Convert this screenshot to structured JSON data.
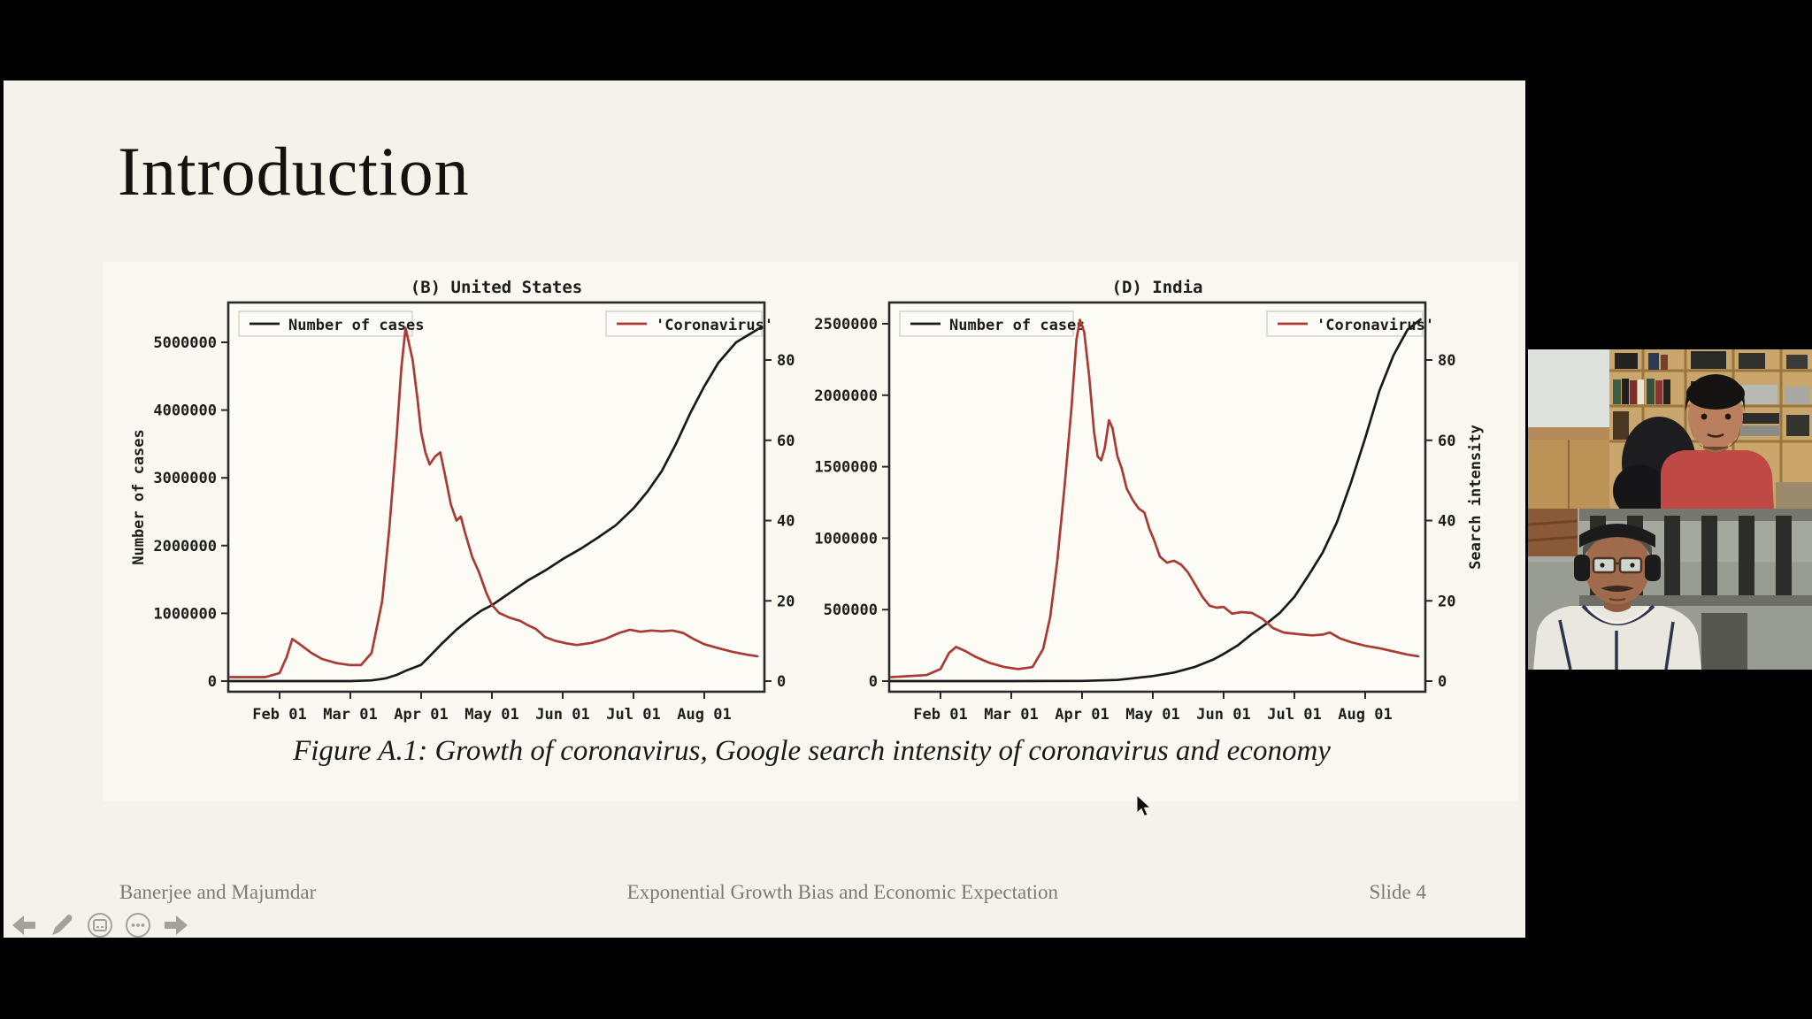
{
  "slide": {
    "title": "Introduction",
    "caption": "Figure A.1: Growth of coronavirus, Google search intensity of coronavirus and economy",
    "footer": {
      "author": "Banerjee and Majumdar",
      "deck_title": "Exponential Growth Bias and Economic Expectation",
      "slide_number": "Slide 4"
    },
    "background_color": "#f5f2ea",
    "nav_icons": [
      "previous-slide",
      "pen-tool",
      "slide-overview",
      "more-options",
      "next-slide"
    ]
  },
  "chart_data": [
    {
      "type": "line",
      "title": "(B) United States",
      "x_tick_labels": [
        "Feb 01",
        "Mar 01",
        "Apr 01",
        "May 01",
        "Jun 01",
        "Jul 01",
        "Aug 01"
      ],
      "x_note": "x in months, 1 = Feb 01 ... 7 = Aug 01, plotted range about Jan 10 to Aug 25",
      "y_left": {
        "label": "Number of cases",
        "ticks": [
          0,
          1000000,
          2000000,
          3000000,
          4000000,
          5000000
        ]
      },
      "y_right": {
        "label": "",
        "ticks": [
          0,
          20,
          40,
          60,
          80
        ]
      },
      "legend": [
        {
          "label": "Number of cases",
          "color": "#1c1a18"
        },
        {
          "label": "'Coronavirus'",
          "color": "#a93a34"
        }
      ],
      "series": [
        {
          "name": "Number of cases",
          "axis": "left",
          "color": "#1c1a18",
          "points": [
            [
              0.3,
              0
            ],
            [
              1.0,
              0
            ],
            [
              2.0,
              100
            ],
            [
              2.3,
              10000
            ],
            [
              2.5,
              40000
            ],
            [
              2.65,
              90000
            ],
            [
              2.8,
              160000
            ],
            [
              3.0,
              240000
            ],
            [
              3.15,
              400000
            ],
            [
              3.3,
              560000
            ],
            [
              3.5,
              760000
            ],
            [
              3.7,
              930000
            ],
            [
              3.85,
              1040000
            ],
            [
              4.0,
              1120000
            ],
            [
              4.25,
              1300000
            ],
            [
              4.5,
              1480000
            ],
            [
              4.75,
              1630000
            ],
            [
              5.0,
              1800000
            ],
            [
              5.25,
              1950000
            ],
            [
              5.5,
              2120000
            ],
            [
              5.75,
              2300000
            ],
            [
              6.0,
              2550000
            ],
            [
              6.2,
              2800000
            ],
            [
              6.4,
              3100000
            ],
            [
              6.6,
              3500000
            ],
            [
              6.8,
              3950000
            ],
            [
              7.0,
              4350000
            ],
            [
              7.2,
              4700000
            ],
            [
              7.45,
              5000000
            ],
            [
              7.8,
              5220000
            ]
          ]
        },
        {
          "name": "'Coronavirus'",
          "axis": "right",
          "color": "#a93a34",
          "points": [
            [
              0.3,
              1
            ],
            [
              0.8,
              1
            ],
            [
              1.0,
              2
            ],
            [
              1.1,
              6
            ],
            [
              1.18,
              10.5
            ],
            [
              1.3,
              9
            ],
            [
              1.45,
              7
            ],
            [
              1.6,
              5.5
            ],
            [
              1.8,
              4.5
            ],
            [
              2.0,
              4
            ],
            [
              2.15,
              4
            ],
            [
              2.3,
              7
            ],
            [
              2.45,
              20
            ],
            [
              2.55,
              38
            ],
            [
              2.65,
              60
            ],
            [
              2.72,
              78
            ],
            [
              2.78,
              88
            ],
            [
              2.83,
              84
            ],
            [
              2.88,
              80
            ],
            [
              2.95,
              70
            ],
            [
              3.0,
              62
            ],
            [
              3.06,
              57
            ],
            [
              3.12,
              54
            ],
            [
              3.2,
              56
            ],
            [
              3.27,
              57
            ],
            [
              3.33,
              52
            ],
            [
              3.42,
              44
            ],
            [
              3.5,
              40
            ],
            [
              3.56,
              41
            ],
            [
              3.62,
              37
            ],
            [
              3.72,
              31
            ],
            [
              3.82,
              27
            ],
            [
              3.92,
              22
            ],
            [
              4.0,
              19
            ],
            [
              4.1,
              17
            ],
            [
              4.25,
              15.8
            ],
            [
              4.4,
              15
            ],
            [
              4.5,
              14
            ],
            [
              4.62,
              13
            ],
            [
              4.75,
              11
            ],
            [
              4.9,
              10
            ],
            [
              5.05,
              9.4
            ],
            [
              5.2,
              9
            ],
            [
              5.4,
              9.5
            ],
            [
              5.6,
              10.5
            ],
            [
              5.8,
              12
            ],
            [
              5.95,
              12.8
            ],
            [
              6.1,
              12.3
            ],
            [
              6.25,
              12.6
            ],
            [
              6.4,
              12.4
            ],
            [
              6.55,
              12.6
            ],
            [
              6.7,
              12
            ],
            [
              6.85,
              10.5
            ],
            [
              7.0,
              9.2
            ],
            [
              7.2,
              8.2
            ],
            [
              7.4,
              7.3
            ],
            [
              7.6,
              6.6
            ],
            [
              7.75,
              6.2
            ]
          ]
        }
      ]
    },
    {
      "type": "line",
      "title": "(D) India",
      "x_tick_labels": [
        "Feb 01",
        "Mar 01",
        "Apr 01",
        "May 01",
        "Jun 01",
        "Jul 01",
        "Aug 01"
      ],
      "x_note": "x in months, 1 = Feb 01 ... 7 = Aug 01, plotted range about Jan 10 to Aug 25",
      "y_left": {
        "label": "",
        "ticks": [
          0,
          500000,
          1000000,
          1500000,
          2000000,
          2500000
        ]
      },
      "y_right": {
        "label": "Search intensity",
        "ticks": [
          0,
          20,
          40,
          60,
          80
        ]
      },
      "legend": [
        {
          "label": "Number of cases",
          "color": "#1c1a18"
        },
        {
          "label": "'Coronavirus'",
          "color": "#a93a34"
        }
      ],
      "series": [
        {
          "name": "Number of cases",
          "axis": "left",
          "color": "#1c1a18",
          "points": [
            [
              0.3,
              0
            ],
            [
              2.0,
              0
            ],
            [
              2.5,
              500
            ],
            [
              3.0,
              1400
            ],
            [
              3.5,
              8000
            ],
            [
              4.0,
              35000
            ],
            [
              4.3,
              60000
            ],
            [
              4.6,
              100000
            ],
            [
              4.85,
              150000
            ],
            [
              5.0,
              190000
            ],
            [
              5.2,
              250000
            ],
            [
              5.4,
              330000
            ],
            [
              5.6,
              400000
            ],
            [
              5.8,
              480000
            ],
            [
              6.0,
              590000
            ],
            [
              6.2,
              740000
            ],
            [
              6.4,
              900000
            ],
            [
              6.6,
              1110000
            ],
            [
              6.8,
              1390000
            ],
            [
              7.0,
              1700000
            ],
            [
              7.2,
              2030000
            ],
            [
              7.4,
              2280000
            ],
            [
              7.6,
              2460000
            ],
            [
              7.78,
              2530000
            ]
          ]
        },
        {
          "name": "'Coronavirus'",
          "axis": "right",
          "color": "#a93a34",
          "points": [
            [
              0.3,
              1
            ],
            [
              0.8,
              1.5
            ],
            [
              1.0,
              3
            ],
            [
              1.12,
              7
            ],
            [
              1.22,
              8.5
            ],
            [
              1.35,
              7.5
            ],
            [
              1.5,
              6
            ],
            [
              1.7,
              4.5
            ],
            [
              1.9,
              3.5
            ],
            [
              2.1,
              3
            ],
            [
              2.3,
              3.5
            ],
            [
              2.45,
              8
            ],
            [
              2.55,
              16
            ],
            [
              2.65,
              30
            ],
            [
              2.75,
              48
            ],
            [
              2.85,
              68
            ],
            [
              2.92,
              85
            ],
            [
              2.97,
              90
            ],
            [
              3.03,
              87
            ],
            [
              3.1,
              76
            ],
            [
              3.17,
              62
            ],
            [
              3.22,
              56
            ],
            [
              3.27,
              55
            ],
            [
              3.32,
              58
            ],
            [
              3.38,
              65
            ],
            [
              3.43,
              63
            ],
            [
              3.5,
              56
            ],
            [
              3.56,
              53
            ],
            [
              3.63,
              48
            ],
            [
              3.72,
              45
            ],
            [
              3.8,
              43
            ],
            [
              3.88,
              42
            ],
            [
              3.95,
              38
            ],
            [
              4.02,
              35
            ],
            [
              4.1,
              31
            ],
            [
              4.2,
              29.5
            ],
            [
              4.3,
              30
            ],
            [
              4.4,
              29
            ],
            [
              4.5,
              27
            ],
            [
              4.6,
              24
            ],
            [
              4.7,
              21
            ],
            [
              4.8,
              18.8
            ],
            [
              4.9,
              18.3
            ],
            [
              5.0,
              18.5
            ],
            [
              5.12,
              16.8
            ],
            [
              5.25,
              17.2
            ],
            [
              5.4,
              17
            ],
            [
              5.55,
              15.5
            ],
            [
              5.7,
              13.2
            ],
            [
              5.85,
              12.1
            ],
            [
              6.05,
              11.7
            ],
            [
              6.25,
              11.4
            ],
            [
              6.4,
              11.6
            ],
            [
              6.5,
              12.1
            ],
            [
              6.65,
              10.6
            ],
            [
              6.8,
              9.7
            ],
            [
              7.0,
              8.8
            ],
            [
              7.2,
              8.2
            ],
            [
              7.4,
              7.4
            ],
            [
              7.6,
              6.6
            ],
            [
              7.75,
              6.2
            ]
          ]
        }
      ]
    }
  ],
  "videos": {
    "participants": [
      {
        "id": "participant-top",
        "description": "man in red shirt in front of wooden bookshelves",
        "shirt_color": "#bf4a45"
      },
      {
        "id": "participant-bottom",
        "description": "man with glasses and headphones in white polo, gray paneled wall",
        "shirt_color": "#eae7de"
      }
    ]
  }
}
